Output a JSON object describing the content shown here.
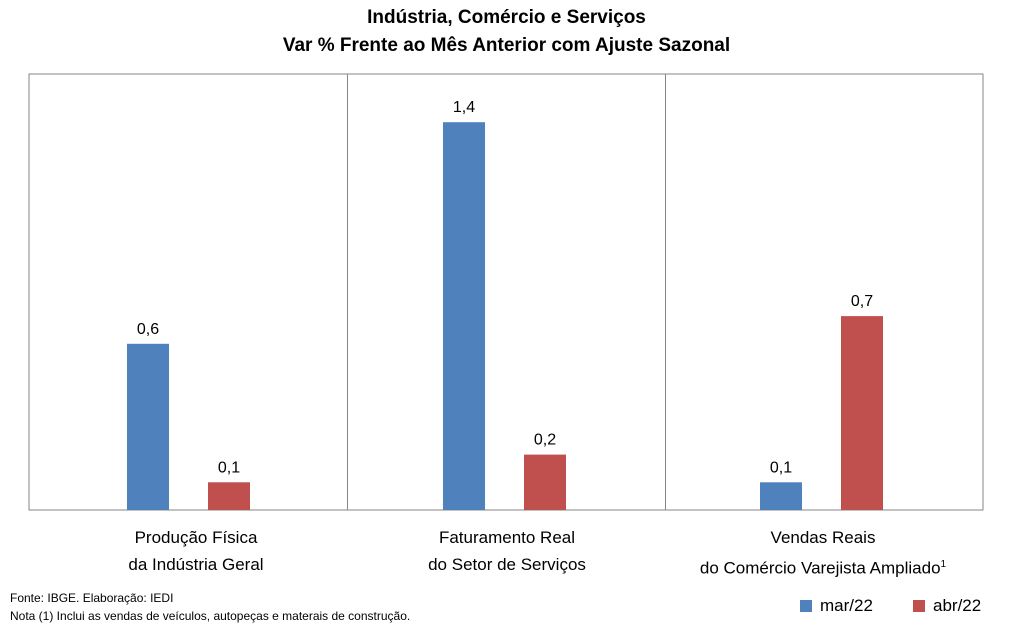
{
  "chart_data": {
    "type": "bar",
    "title": "Indústria, Comércio e Serviços",
    "subtitle": "Var % Frente ao Mês Anterior com Ajuste Sazonal",
    "categories": [
      {
        "line1": "Produção Física",
        "line2": "da Indústria Geral",
        "sup": ""
      },
      {
        "line1": "Faturamento Real",
        "line2": "do Setor de Serviços",
        "sup": ""
      },
      {
        "line1": "Vendas Reais",
        "line2": "do Comércio Varejista Ampliado",
        "sup": "1"
      }
    ],
    "series": [
      {
        "name": "mar/22",
        "color": "#4f81bd",
        "values": [
          0.6,
          1.4,
          0.1
        ],
        "labels": [
          "0,6",
          "1,4",
          "0,1"
        ]
      },
      {
        "name": "abr/22",
        "color": "#c0504d",
        "values": [
          0.1,
          0.2,
          0.7
        ],
        "labels": [
          "0,1",
          "0,2",
          "0,7"
        ]
      }
    ],
    "ylim": [
      0,
      1.5
    ],
    "grid": false,
    "legend": "bottom-right"
  },
  "footer": {
    "source": "Fonte: IBGE. Elaboração: IEDI",
    "note": "Nota (1) Inclui as vendas de veículos, autopeças e materais de construção."
  }
}
